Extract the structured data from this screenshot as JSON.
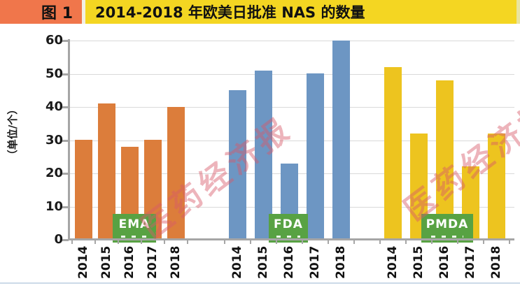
{
  "header": {
    "figure_label": "图 1",
    "title": "2014-2018 年欧美日批准 NAS 的数量",
    "figure_bg": "#F0764B",
    "title_bg": "#F4D622"
  },
  "chart_data": {
    "type": "bar",
    "title": "2014-2018 年欧美日批准 NAS 的数量",
    "ylabel": "（单位/个）",
    "xlabel": "",
    "ylim": [
      0,
      60
    ],
    "y_ticks": [
      0,
      10,
      20,
      30,
      40,
      50,
      60
    ],
    "grid": "horizontal",
    "legend_position": "inline-group-labels",
    "categories": [
      "2014",
      "2015",
      "2016",
      "2017",
      "2018"
    ],
    "series": [
      {
        "name": "EMA",
        "color": "#DC7D3B",
        "values": [
          30,
          41,
          28,
          30,
          40
        ]
      },
      {
        "name": "FDA",
        "color": "#6D96C3",
        "values": [
          45,
          51,
          23,
          50,
          60
        ]
      },
      {
        "name": "PMDA",
        "color": "#EDC41F",
        "values": [
          52,
          32,
          48,
          22,
          32
        ]
      }
    ],
    "group_label_color": "#58A243",
    "axis_color": "#A6A6A6",
    "gridline_color": "#D9D9D9"
  },
  "watermark": {
    "text": "医药经济报",
    "color": "#D95A69"
  }
}
